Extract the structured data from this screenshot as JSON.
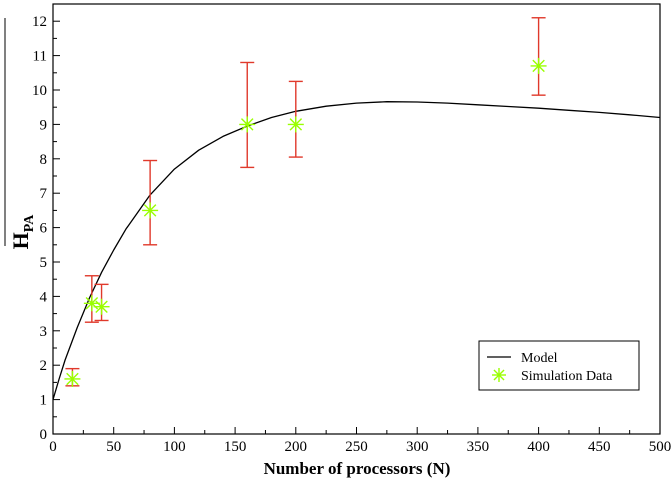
{
  "chart_data": {
    "type": "scatter",
    "xlabel": "Number of processors (N)",
    "ylabel": "H",
    "ylabel_subscript": "PA",
    "xlim": [
      0,
      500
    ],
    "ylim": [
      0,
      12.5
    ],
    "xticks": [
      0,
      50,
      100,
      150,
      200,
      250,
      300,
      350,
      400,
      450,
      500
    ],
    "yticks": [
      0,
      1,
      2,
      3,
      4,
      5,
      6,
      7,
      8,
      9,
      10,
      11,
      12
    ],
    "grid": false,
    "legend_position": "bottom-right",
    "colors": {
      "model": "#000000",
      "simulation": "#99ff00",
      "error_bars": "#e0392b"
    },
    "series": [
      {
        "name": "Model",
        "type": "line",
        "x": [
          0,
          5,
          10,
          20,
          30,
          40,
          50,
          60,
          80,
          100,
          120,
          140,
          160,
          180,
          200,
          225,
          250,
          275,
          300,
          325,
          350,
          375,
          400,
          425,
          450,
          475,
          500
        ],
        "y": [
          1.0,
          1.6,
          2.15,
          3.1,
          3.95,
          4.7,
          5.35,
          5.95,
          6.95,
          7.7,
          8.25,
          8.65,
          8.95,
          9.2,
          9.38,
          9.53,
          9.62,
          9.66,
          9.65,
          9.62,
          9.57,
          9.52,
          9.47,
          9.41,
          9.35,
          9.28,
          9.2
        ]
      },
      {
        "name": "Simulation Data",
        "type": "scatter",
        "marker": "asterisk",
        "points": [
          {
            "x": 16,
            "y": 1.6,
            "ylo": 1.4,
            "yhi": 1.9
          },
          {
            "x": 32,
            "y": 3.8,
            "ylo": 3.25,
            "yhi": 4.6
          },
          {
            "x": 40,
            "y": 3.7,
            "ylo": 3.3,
            "yhi": 4.35
          },
          {
            "x": 80,
            "y": 6.5,
            "ylo": 5.5,
            "yhi": 7.95
          },
          {
            "x": 160,
            "y": 9.0,
            "ylo": 7.75,
            "yhi": 10.8
          },
          {
            "x": 200,
            "y": 9.0,
            "ylo": 8.05,
            "yhi": 10.25
          },
          {
            "x": 400,
            "y": 10.7,
            "ylo": 9.85,
            "yhi": 12.1
          }
        ]
      }
    ]
  }
}
